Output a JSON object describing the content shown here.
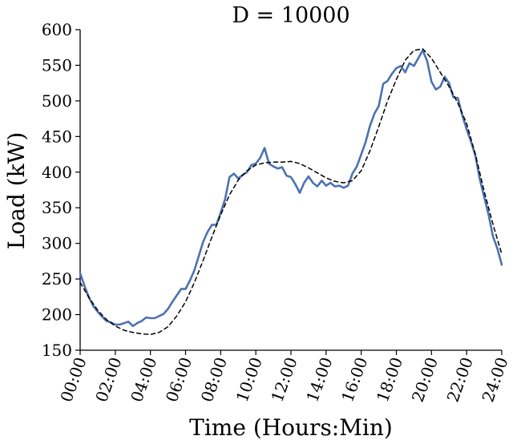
{
  "chart_data": {
    "type": "line",
    "title": "D = 10000",
    "xlabel": "Time (Hours:Min)",
    "ylabel": "Load (kW)",
    "xlim": [
      0,
      24
    ],
    "ylim": [
      150,
      600
    ],
    "x_ticks": [
      0,
      2,
      4,
      6,
      8,
      10,
      12,
      14,
      16,
      18,
      20,
      22,
      24
    ],
    "x_tick_labels": [
      "00:00",
      "02:00",
      "04:00",
      "06:00",
      "08:00",
      "10:00",
      "12:00",
      "14:00",
      "16:00",
      "18:00",
      "20:00",
      "22:00",
      "24:00"
    ],
    "y_ticks": [
      150,
      200,
      250,
      300,
      350,
      400,
      450,
      500,
      550,
      600
    ],
    "y_tick_labels": [
      "150",
      "200",
      "250",
      "300",
      "350",
      "400",
      "450",
      "500",
      "550",
      "600"
    ],
    "grid": false,
    "legend": null,
    "series": [
      {
        "style": "solid",
        "color": "#4c72b0",
        "x": [
          0,
          0.25,
          0.5,
          0.75,
          1,
          1.25,
          1.5,
          1.75,
          2,
          2.25,
          2.5,
          2.75,
          3,
          3.25,
          3.5,
          3.75,
          4,
          4.25,
          4.5,
          4.75,
          5,
          5.25,
          5.5,
          5.75,
          6,
          6.25,
          6.5,
          6.75,
          7,
          7.25,
          7.5,
          7.75,
          8,
          8.25,
          8.5,
          8.75,
          9,
          9.25,
          9.5,
          9.75,
          10,
          10.25,
          10.5,
          10.75,
          11,
          11.25,
          11.5,
          11.75,
          12,
          12.25,
          12.5,
          12.75,
          13,
          13.25,
          13.5,
          13.75,
          14,
          14.25,
          14.5,
          14.75,
          15,
          15.25,
          15.5,
          15.75,
          16,
          16.25,
          16.5,
          16.75,
          17,
          17.25,
          17.5,
          17.75,
          18,
          18.25,
          18.5,
          18.75,
          19,
          19.25,
          19.5,
          19.75,
          20,
          20.25,
          20.5,
          20.75,
          21,
          21.25,
          21.5,
          21.75,
          22,
          22.25,
          22.5,
          22.75,
          23,
          23.25,
          23.5,
          23.75,
          24
        ],
        "values": [
          258,
          240,
          224,
          212,
          204,
          197,
          191,
          189,
          186,
          186,
          188,
          190,
          184,
          188,
          191,
          196,
          195,
          195,
          198,
          201,
          208,
          218,
          227,
          236,
          236,
          248,
          262,
          282,
          302,
          316,
          326,
          326,
          343,
          362,
          393,
          398,
          391,
          396,
          400,
          410,
          412,
          420,
          434,
          412,
          408,
          405,
          407,
          395,
          393,
          383,
          371,
          385,
          394,
          385,
          380,
          388,
          381,
          385,
          380,
          381,
          378,
          381,
          398,
          408,
          425,
          442,
          465,
          482,
          493,
          524,
          528,
          538,
          546,
          549,
          540,
          553,
          549,
          560,
          571,
          556,
          527,
          516,
          520,
          534,
          525,
          505,
          504,
          480,
          460,
          443,
          423,
          390,
          365,
          340,
          310,
          293,
          270
        ]
      },
      {
        "style": "dashed",
        "color": "#000000",
        "x": [
          0,
          0.5,
          1,
          1.5,
          2,
          2.5,
          3,
          3.5,
          4,
          4.5,
          5,
          5.5,
          6,
          6.5,
          7,
          7.5,
          8,
          8.5,
          9,
          9.5,
          10,
          10.5,
          11,
          11.5,
          12,
          12.5,
          13,
          13.5,
          14,
          14.5,
          15,
          15.5,
          16,
          16.5,
          17,
          17.5,
          18,
          18.5,
          19,
          19.5,
          20,
          20.5,
          21,
          21.5,
          22,
          22.5,
          23,
          23.5,
          24
        ],
        "values": [
          245,
          224,
          206,
          193,
          184,
          178,
          175,
          173,
          172,
          175,
          183,
          198,
          218,
          245,
          276,
          309,
          340,
          368,
          389,
          402,
          410,
          413,
          414,
          414,
          415,
          412,
          406,
          399,
          392,
          387,
          385,
          388,
          402,
          430,
          464,
          500,
          530,
          557,
          571,
          573,
          560,
          540,
          520,
          497,
          468,
          425,
          373,
          327,
          285
        ]
      }
    ]
  }
}
